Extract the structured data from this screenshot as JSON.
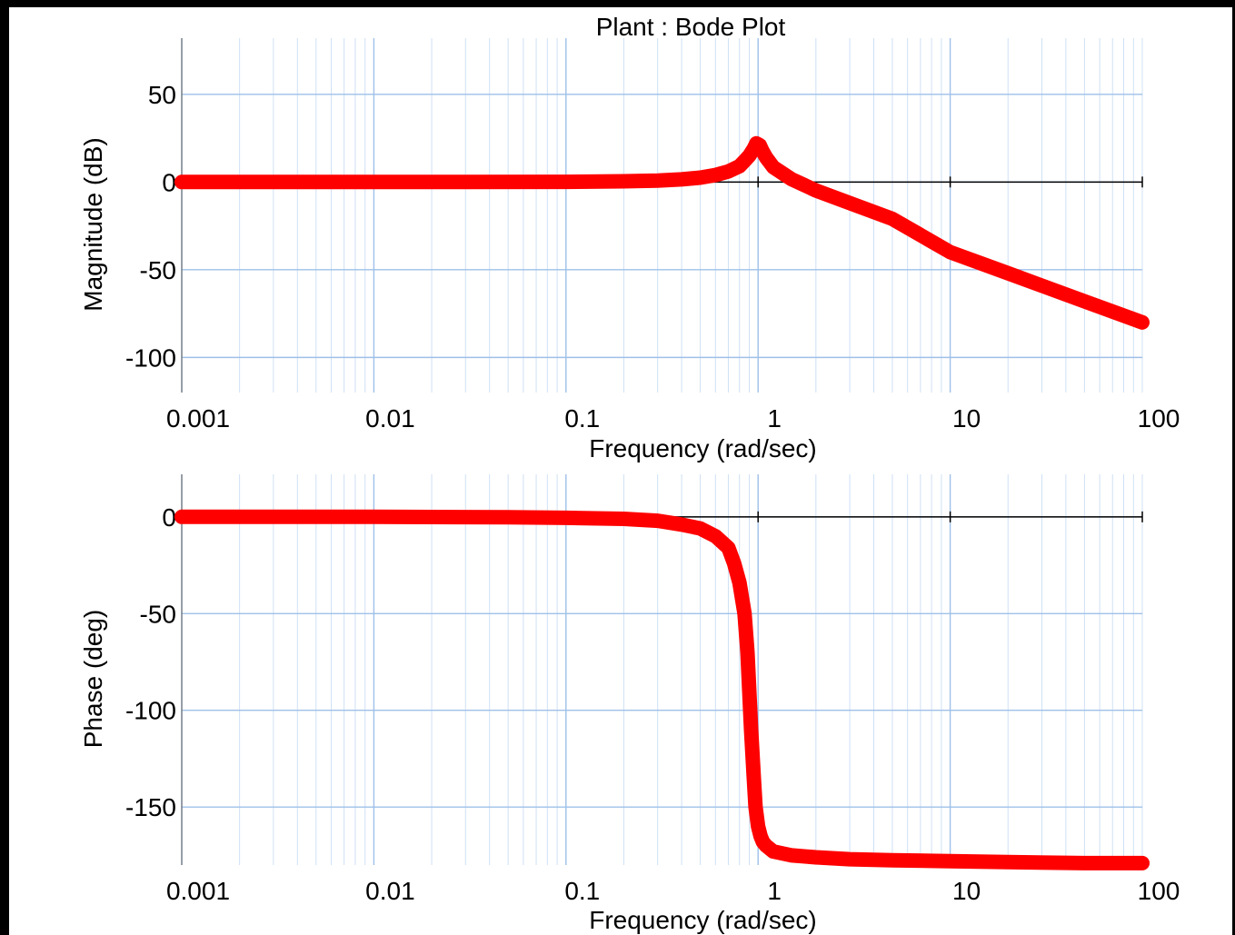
{
  "chart_data": [
    {
      "type": "line",
      "title": "Plant : Bode Plot",
      "xlabel": "Frequency (rad/sec)",
      "ylabel": "Magnitude (dB)",
      "xscale": "log",
      "xlim": [
        0.001,
        100
      ],
      "ylim": [
        -120,
        82
      ],
      "xticks": [
        0.001,
        0.01,
        0.1,
        1,
        10,
        100
      ],
      "xtick_labels": [
        "0.001",
        "0.01",
        "0.1",
        "1",
        "10",
        "100"
      ],
      "yticks": [
        -100,
        -50,
        0,
        50
      ],
      "ytick_labels": [
        "-100",
        "-50",
        "0",
        "50"
      ],
      "grid": true,
      "series": [
        {
          "color": "#ff0000",
          "x": [
            0.001,
            0.003,
            0.01,
            0.03,
            0.1,
            0.2,
            0.3,
            0.4,
            0.5,
            0.6,
            0.7,
            0.8,
            0.85,
            0.9,
            0.95,
            0.98,
            1.02,
            1.05,
            1.1,
            1.2,
            1.5,
            2,
            3,
            5,
            10,
            20,
            50,
            100
          ],
          "y": [
            0,
            0,
            0,
            0,
            0.1,
            0.4,
            0.8,
            1.5,
            2.5,
            4,
            6,
            9,
            12,
            15,
            19,
            22,
            21,
            18,
            14,
            8.5,
            1.5,
            -4.8,
            -12,
            -21,
            -40,
            -52,
            -68,
            -80
          ]
        }
      ]
    },
    {
      "type": "line",
      "title": "",
      "xlabel": "Frequency (rad/sec)",
      "ylabel": "Phase (deg)",
      "xscale": "log",
      "xlim": [
        0.001,
        100
      ],
      "ylim": [
        -180,
        22
      ],
      "xticks": [
        0.001,
        0.01,
        0.1,
        1,
        10,
        100
      ],
      "xtick_labels": [
        "0.001",
        "0.01",
        "0.1",
        "1",
        "10",
        "100"
      ],
      "yticks": [
        -150,
        -100,
        -50,
        0
      ],
      "ytick_labels": [
        "-150",
        "-100",
        "-50",
        "0"
      ],
      "grid": true,
      "series": [
        {
          "color": "#ff0000",
          "x": [
            0.001,
            0.01,
            0.05,
            0.1,
            0.2,
            0.3,
            0.4,
            0.5,
            0.6,
            0.7,
            0.75,
            0.8,
            0.85,
            0.88,
            0.9,
            0.92,
            0.95,
            0.97,
            1.0,
            1.03,
            1.06,
            1.1,
            1.2,
            1.5,
            2,
            3,
            5,
            10,
            20,
            50,
            100
          ],
          "y": [
            0,
            0,
            -0.2,
            -0.5,
            -1,
            -2,
            -4,
            -6,
            -10,
            -16,
            -24,
            -34,
            -50,
            -70,
            -90,
            -110,
            -135,
            -150,
            -160,
            -165,
            -168,
            -170,
            -173,
            -175,
            -176,
            -177,
            -177.5,
            -178,
            -178.5,
            -179,
            -179
          ]
        }
      ]
    }
  ]
}
